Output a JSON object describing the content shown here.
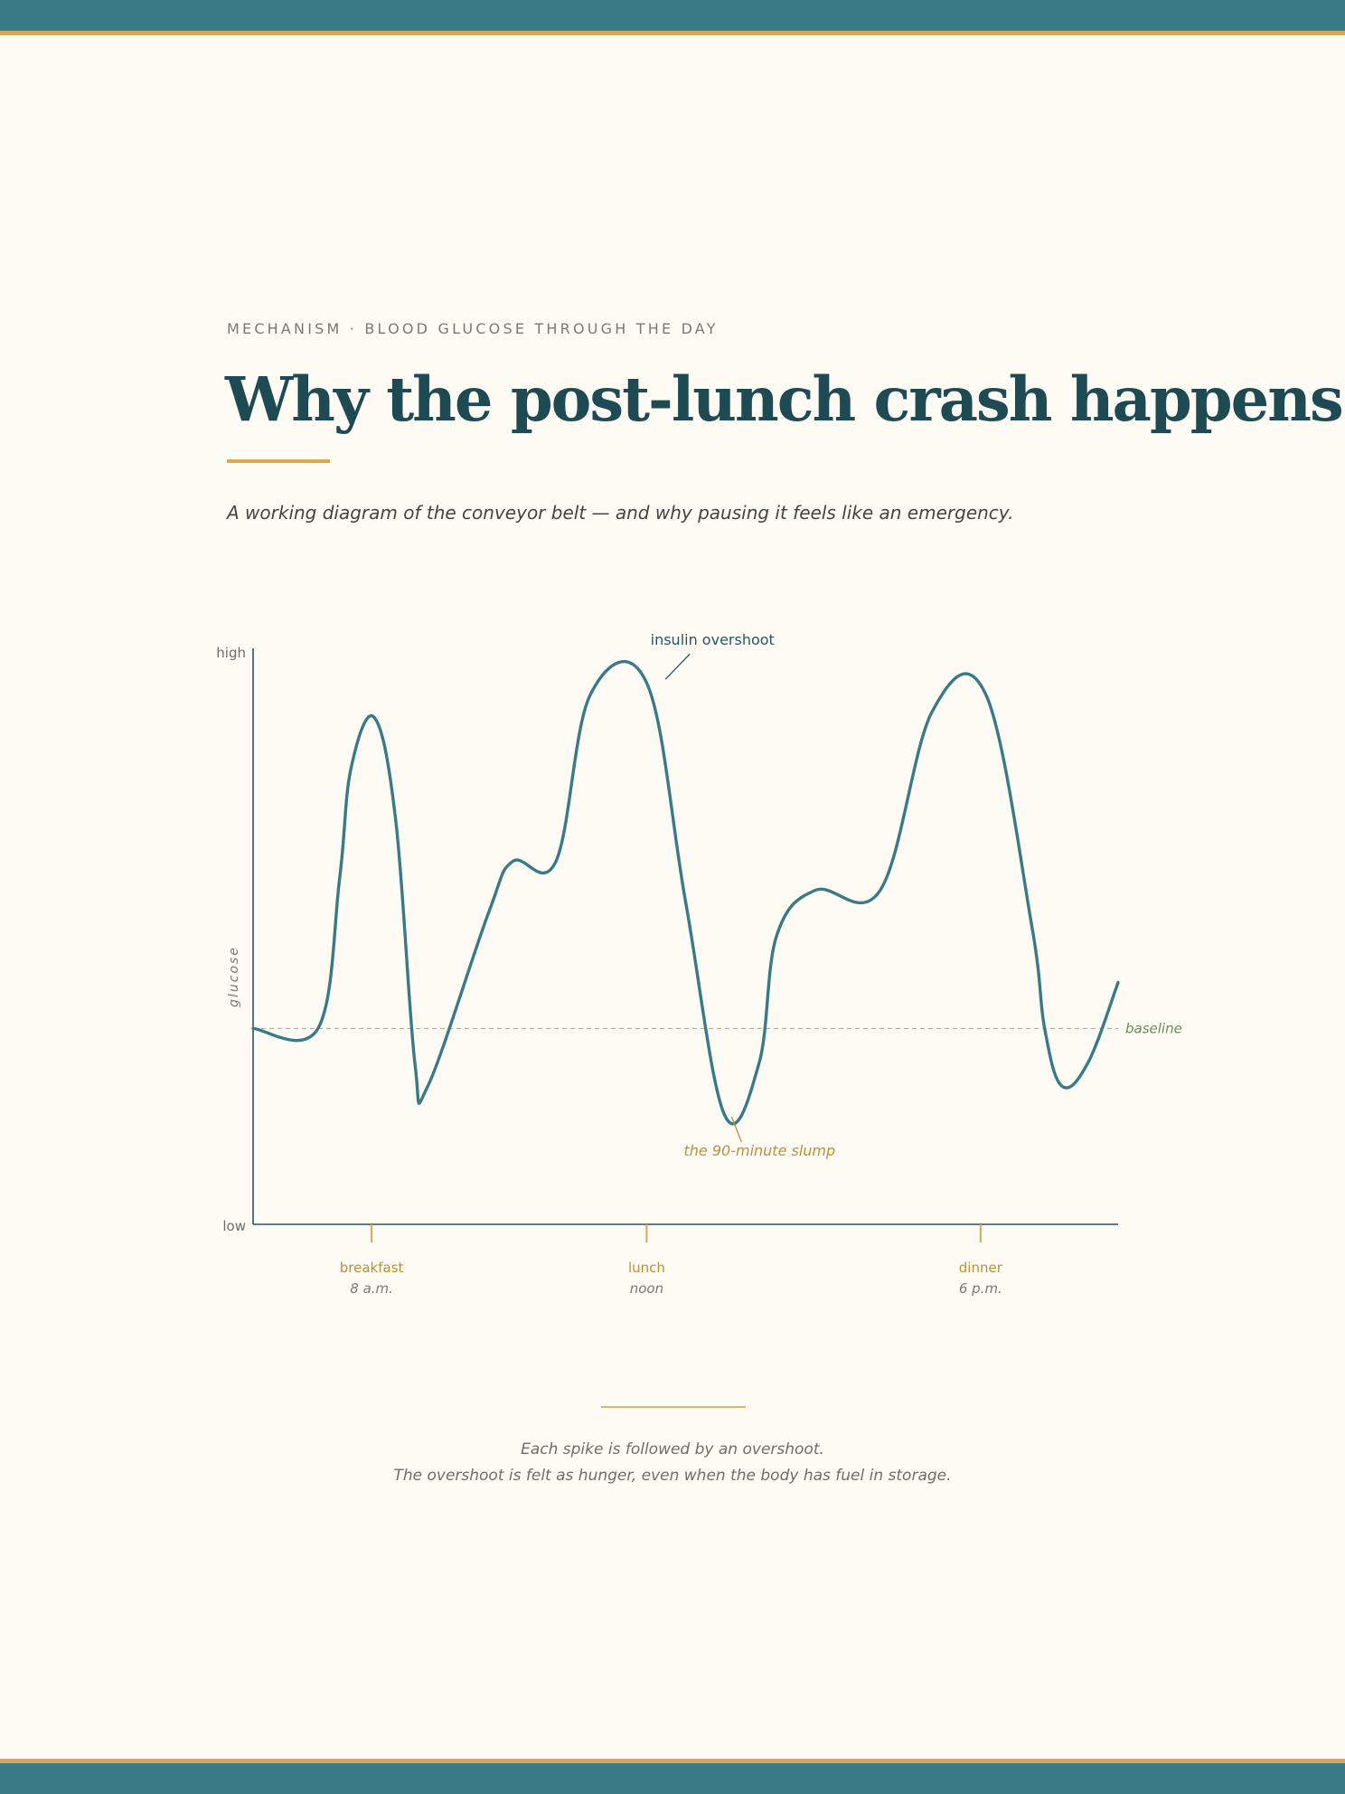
{
  "header": {
    "eyebrow": "MECHANISM · BLOOD GLUCOSE THROUGH THE DAY",
    "title": "Why the post-lunch crash happens",
    "subtitle": "A working diagram of the conveyor belt — and why pausing it feels like an emergency."
  },
  "chart_data": {
    "type": "line",
    "ylabel": "glucose",
    "y_tick_labels": [
      "low",
      "high"
    ],
    "ylim": [
      0,
      100
    ],
    "baseline_value": 34,
    "baseline_label": "baseline",
    "series": [
      {
        "values_note": "",
        "points": [
          [
            0,
            34
          ],
          [
            7.5,
            34
          ],
          [
            10,
            60
          ],
          [
            11.3,
            79
          ],
          [
            14,
            88
          ],
          [
            16.5,
            70
          ],
          [
            18.7,
            28
          ],
          [
            20.2,
            24
          ],
          [
            27.2,
            54
          ],
          [
            30,
            63
          ],
          [
            35,
            63
          ],
          [
            39,
            92
          ],
          [
            45.5,
            94
          ],
          [
            50,
            56
          ],
          [
            54.5,
            19
          ],
          [
            58.5,
            28
          ],
          [
            60.5,
            50
          ],
          [
            65,
            58
          ],
          [
            72.5,
            58
          ],
          [
            78.5,
            89
          ],
          [
            84.7,
            92
          ],
          [
            90,
            52
          ],
          [
            91.5,
            34
          ],
          [
            93.5,
            24
          ],
          [
            96.5,
            28
          ],
          [
            100,
            42
          ]
        ]
      }
    ],
    "annotations": [
      {
        "text": "insulin overshoot",
        "x": 46,
        "y": 94
      },
      {
        "text": "the 90-minute slump",
        "x": 55,
        "y": 19
      }
    ],
    "meals": [
      {
        "label": "breakfast",
        "time": "8 a.m.",
        "x": 13.7
      },
      {
        "label": "lunch",
        "time": "noon",
        "x": 45.5
      },
      {
        "label": "dinner",
        "time": "6 p.m.",
        "x": 84.1
      }
    ],
    "colors": {
      "curve": "#3a7a86",
      "axis": "#2b5560",
      "meal": "#d4a857",
      "slump": "#b8913b",
      "baseline": "#6b8d5a"
    }
  },
  "footer": {
    "caption_line1": "Each spike is followed by an overshoot.",
    "caption_line2": "The overshoot is felt as hunger, even when the body has fuel in storage."
  }
}
